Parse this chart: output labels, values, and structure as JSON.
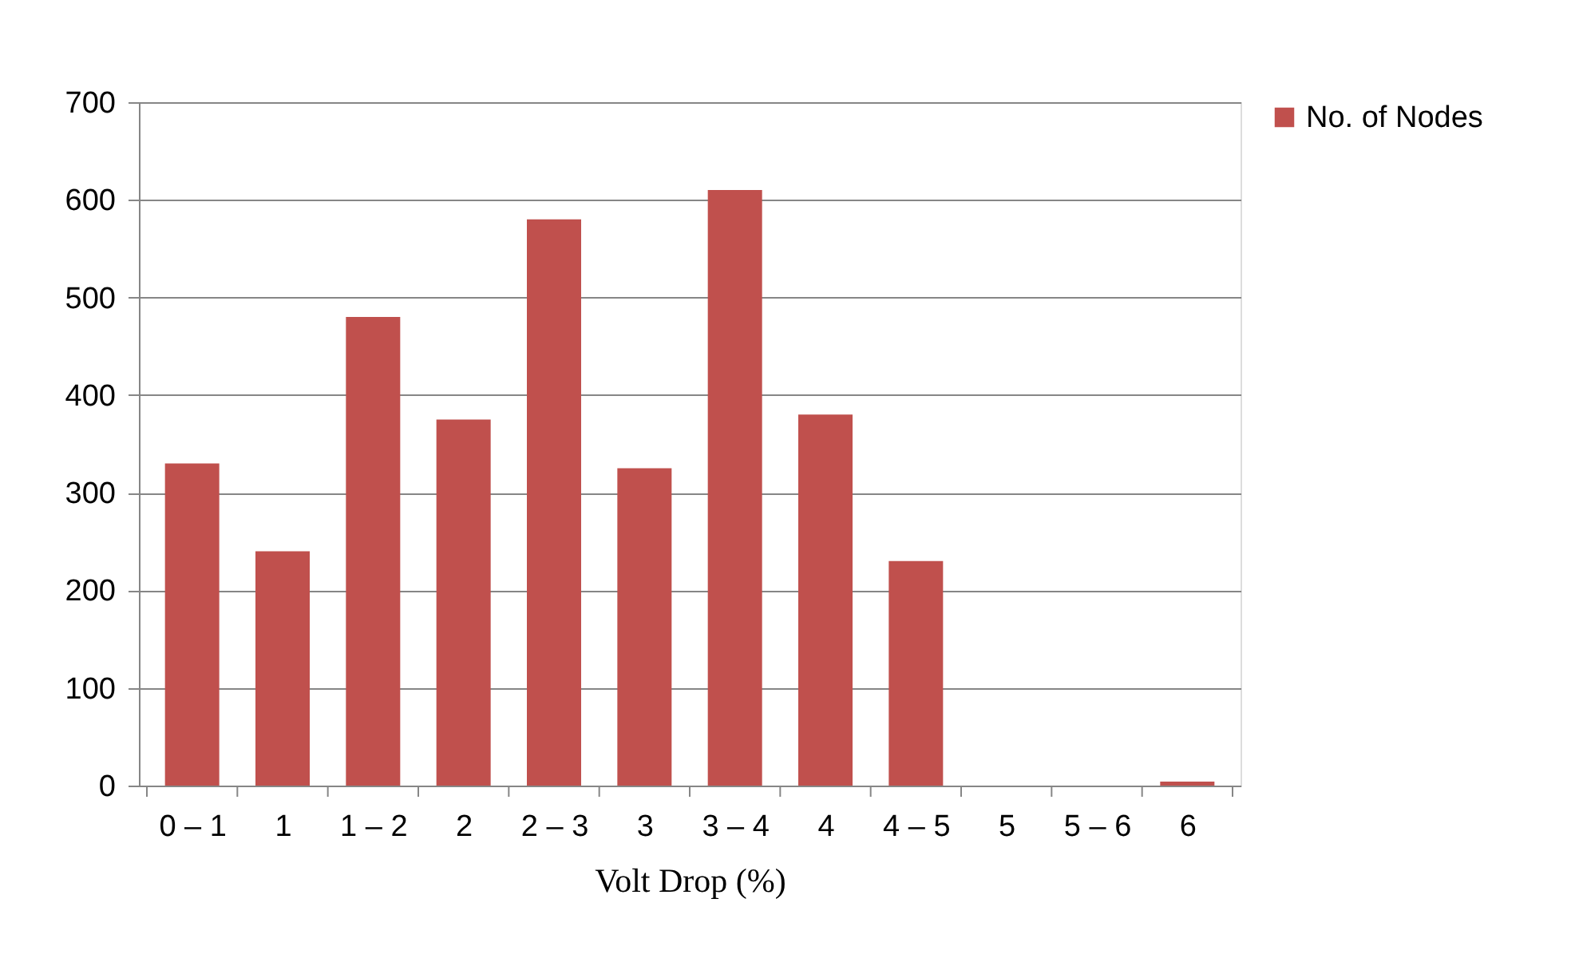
{
  "chart_data": {
    "type": "bar",
    "xlabel": "Volt Drop (%)",
    "categories": [
      "0 – 1",
      "1",
      "1 – 2",
      "2",
      "2 – 3",
      "3",
      "3 – 4",
      "4",
      "4 – 5",
      "5",
      "5 – 6",
      "6"
    ],
    "series": [
      {
        "name": "No. of Nodes",
        "color": "#c0504d",
        "values": [
          330,
          240,
          480,
          375,
          580,
          325,
          610,
          380,
          230,
          0,
          0,
          4
        ]
      }
    ],
    "ylim": [
      0,
      700
    ],
    "yticks": [
      0,
      100,
      200,
      300,
      400,
      500,
      600,
      700
    ],
    "grid": "y",
    "legend": "right"
  }
}
